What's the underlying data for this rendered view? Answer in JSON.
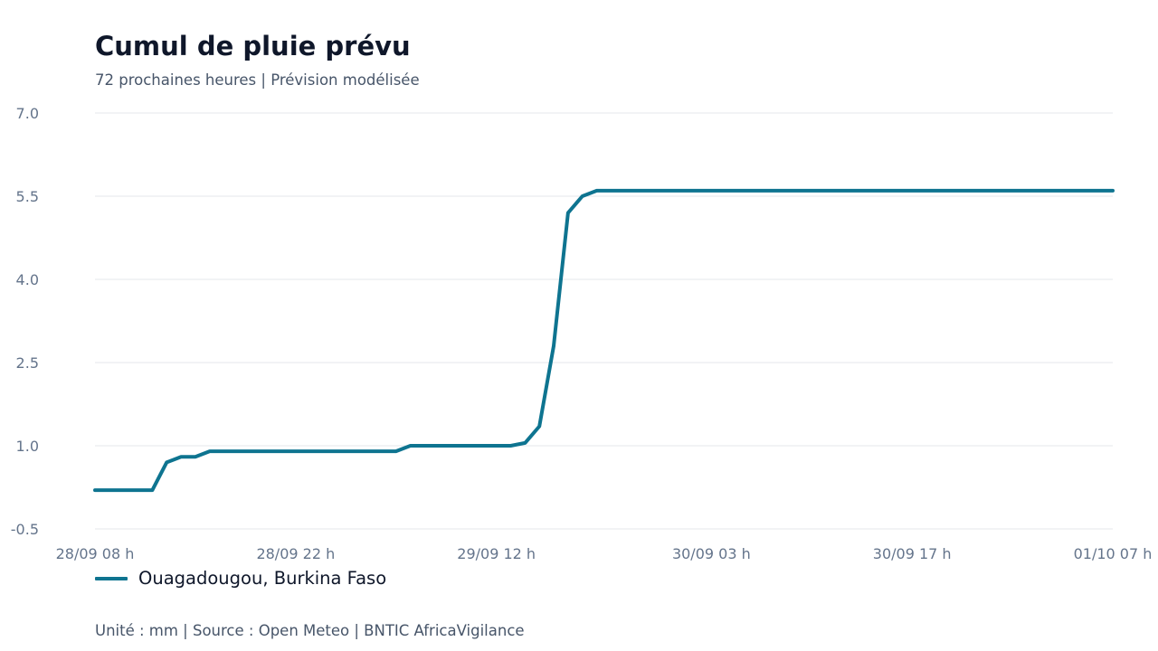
{
  "title": "Cumul de pluie prévu",
  "subtitle": "72 prochaines heures | Prévision modélisée",
  "footer": "Unité : mm | Source : Open Meteo | BNTIC AfricaVigilance",
  "colors": {
    "line": "#0e7490",
    "grid": "#e5e7eb",
    "tick": "#64748b",
    "title": "#0f172a",
    "text": "#475569"
  },
  "chart_data": {
    "type": "line",
    "title": "Cumul de pluie prévu",
    "subtitle": "72 prochaines heures | Prévision modélisée",
    "unit": "mm",
    "ylim": [
      -0.5,
      7.0
    ],
    "yticks": [
      "7.0",
      "5.5",
      "4.0",
      "2.5",
      "1.0",
      "-0.5"
    ],
    "ytick_values": [
      7.0,
      5.5,
      4.0,
      2.5,
      1.0,
      -0.5
    ],
    "xlim": [
      "28/09 08 h",
      "01/10 07 h"
    ],
    "xticks": [
      "28/09 08 h",
      "28/09 22 h",
      "29/09 12 h",
      "30/09 03 h",
      "30/09 17 h",
      "01/10 07 h"
    ],
    "xtick_positions": [
      0,
      14,
      28,
      43,
      57,
      71
    ],
    "grid": true,
    "legend_position": "bottom-left",
    "series": [
      {
        "name": "Ouagadougou, Burkina Faso",
        "x": [
          0,
          1,
          2,
          3,
          4,
          5,
          6,
          7,
          8,
          9,
          10,
          11,
          12,
          13,
          14,
          15,
          16,
          17,
          18,
          19,
          20,
          21,
          22,
          23,
          24,
          25,
          26,
          27,
          28,
          29,
          30,
          31,
          32,
          33,
          34,
          35,
          36,
          37,
          38,
          39,
          40,
          41,
          42,
          43,
          44,
          45,
          46,
          47,
          48,
          49,
          50,
          51,
          52,
          53,
          54,
          55,
          56,
          57,
          58,
          59,
          60,
          61,
          62,
          63,
          64,
          65,
          66,
          67,
          68,
          69,
          70,
          71
        ],
        "y": [
          0.2,
          0.2,
          0.2,
          0.2,
          0.2,
          0.7,
          0.8,
          0.8,
          0.9,
          0.9,
          0.9,
          0.9,
          0.9,
          0.9,
          0.9,
          0.9,
          0.9,
          0.9,
          0.9,
          0.9,
          0.9,
          0.9,
          1.0,
          1.0,
          1.0,
          1.0,
          1.0,
          1.0,
          1.0,
          1.0,
          1.05,
          1.35,
          2.8,
          5.2,
          5.5,
          5.6,
          5.6,
          5.6,
          5.6,
          5.6,
          5.6,
          5.6,
          5.6,
          5.6,
          5.6,
          5.6,
          5.6,
          5.6,
          5.6,
          5.6,
          5.6,
          5.6,
          5.6,
          5.6,
          5.6,
          5.6,
          5.6,
          5.6,
          5.6,
          5.6,
          5.6,
          5.6,
          5.6,
          5.6,
          5.6,
          5.6,
          5.6,
          5.6,
          5.6,
          5.6,
          5.6,
          5.6
        ]
      }
    ]
  },
  "legend": {
    "label": "Ouagadougou, Burkina Faso"
  }
}
